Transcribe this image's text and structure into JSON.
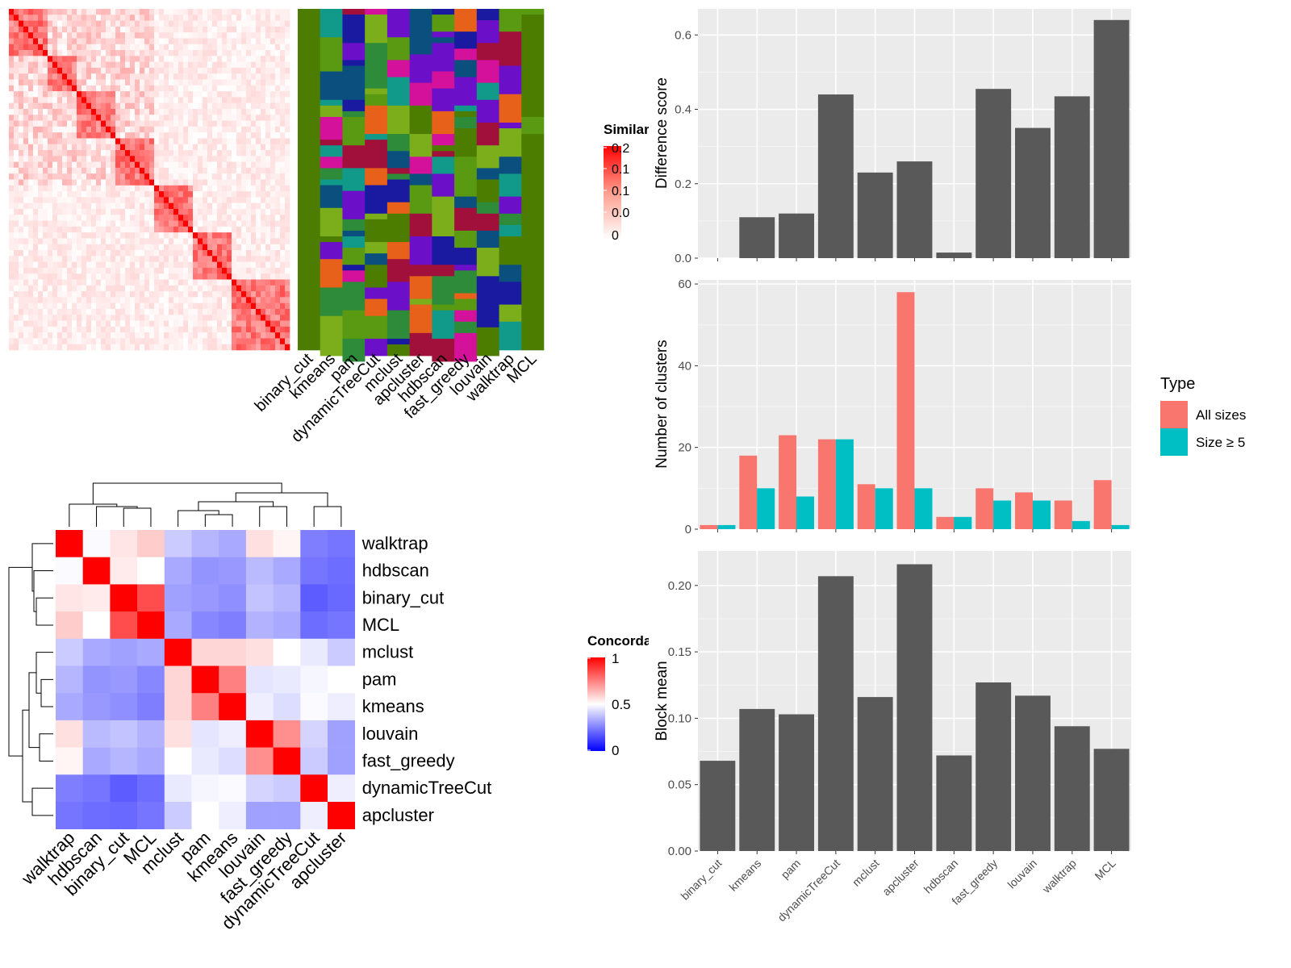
{
  "methods": [
    "binary_cut",
    "kmeans",
    "pam",
    "dynamicTreeCut",
    "mclust",
    "apcluster",
    "hdbscan",
    "fast_greedy",
    "louvain",
    "walktrap",
    "MCL"
  ],
  "similarity_heatmap": {
    "legend_title": "Similarity",
    "legend_ticks": [
      "0.2",
      "0.1",
      "0.1",
      "0.0",
      "0"
    ],
    "colors": {
      "low": "#ffffff",
      "high": "#ff0000"
    }
  },
  "partition_heatmap": {
    "columns": [
      "binary_cut",
      "kmeans",
      "pam",
      "dynamicTreeCut",
      "mclust",
      "apcluster",
      "hdbscan",
      "fast_greedy",
      "louvain",
      "walktrap",
      "MCL"
    ],
    "palette": [
      "#4d7d00",
      "#7cae1c",
      "#0b4f7f",
      "#e8611a",
      "#1a1aa0",
      "#a0103a",
      "#2e8b3a",
      "#d4119a",
      "#119a8a",
      "#6b10c8",
      "#5a9a12"
    ]
  },
  "concordance_heatmap": {
    "legend_title": "Concordance",
    "legend_ticks": [
      "1",
      "0.5",
      "0"
    ],
    "colors": {
      "low": "#0000ff",
      "mid": "#ffffff",
      "high": "#ff0000"
    },
    "order": [
      "walktrap",
      "hdbscan",
      "binary_cut",
      "MCL",
      "mclust",
      "pam",
      "kmeans",
      "louvain",
      "fast_greedy",
      "dynamicTreeCut",
      "apcluster"
    ],
    "matrix": [
      [
        1.0,
        0.49,
        0.55,
        0.6,
        0.38,
        0.33,
        0.3,
        0.56,
        0.52,
        0.2,
        0.18
      ],
      [
        0.49,
        1.0,
        0.54,
        0.5,
        0.3,
        0.25,
        0.26,
        0.34,
        0.3,
        0.18,
        0.16
      ],
      [
        0.55,
        0.54,
        1.0,
        0.85,
        0.28,
        0.26,
        0.24,
        0.36,
        0.33,
        0.12,
        0.15
      ],
      [
        0.6,
        0.5,
        0.85,
        1.0,
        0.3,
        0.22,
        0.2,
        0.32,
        0.3,
        0.16,
        0.18
      ],
      [
        0.38,
        0.3,
        0.28,
        0.3,
        1.0,
        0.58,
        0.58,
        0.56,
        0.5,
        0.45,
        0.38
      ],
      [
        0.33,
        0.25,
        0.26,
        0.22,
        0.58,
        1.0,
        0.75,
        0.44,
        0.45,
        0.48,
        0.5
      ],
      [
        0.3,
        0.26,
        0.24,
        0.2,
        0.58,
        0.75,
        1.0,
        0.46,
        0.42,
        0.49,
        0.46
      ],
      [
        0.56,
        0.34,
        0.36,
        0.32,
        0.56,
        0.44,
        0.46,
        1.0,
        0.72,
        0.4,
        0.28
      ],
      [
        0.52,
        0.3,
        0.33,
        0.3,
        0.5,
        0.45,
        0.42,
        0.72,
        1.0,
        0.38,
        0.28
      ],
      [
        0.2,
        0.18,
        0.12,
        0.16,
        0.45,
        0.48,
        0.49,
        0.4,
        0.38,
        1.0,
        0.46
      ],
      [
        0.18,
        0.16,
        0.15,
        0.18,
        0.38,
        0.5,
        0.46,
        0.28,
        0.28,
        0.46,
        1.0
      ]
    ]
  },
  "chart_data": [
    {
      "type": "bar",
      "categories": [
        "binary_cut",
        "kmeans",
        "pam",
        "dynamicTreeCut",
        "mclust",
        "apcluster",
        "hdbscan",
        "fast_greedy",
        "louvain",
        "walktrap",
        "MCL"
      ],
      "values": [
        0.0,
        0.11,
        0.12,
        0.44,
        0.23,
        0.26,
        0.015,
        0.455,
        0.35,
        0.435,
        0.64
      ],
      "ylabel": "Difference score",
      "ylim": [
        0,
        0.67
      ],
      "yticks": [
        0.0,
        0.2,
        0.4,
        0.6
      ],
      "ytick_labels": [
        "0.0",
        "0.2",
        "0.4",
        "0.6"
      ],
      "color": "#595959"
    },
    {
      "type": "bar",
      "categories": [
        "binary_cut",
        "kmeans",
        "pam",
        "dynamicTreeCut",
        "mclust",
        "apcluster",
        "hdbscan",
        "fast_greedy",
        "louvain",
        "walktrap",
        "MCL"
      ],
      "series": [
        {
          "name": "All sizes",
          "color": "#f8766d",
          "values": [
            1,
            18,
            23,
            22,
            11,
            58,
            3,
            10,
            9,
            7,
            12
          ]
        },
        {
          "name": "Size ≥ 5",
          "color": "#00bfc4",
          "values": [
            1,
            10,
            8,
            22,
            10,
            10,
            3,
            7,
            7,
            2,
            1
          ]
        }
      ],
      "ylabel": "Number of clusters",
      "ylim": [
        0,
        61
      ],
      "yticks": [
        0,
        20,
        40,
        60
      ],
      "ytick_labels": [
        "0",
        "20",
        "40",
        "60"
      ],
      "legend_title": "Type",
      "legend_position": "right"
    },
    {
      "type": "bar",
      "categories": [
        "binary_cut",
        "kmeans",
        "pam",
        "dynamicTreeCut",
        "mclust",
        "apcluster",
        "hdbscan",
        "fast_greedy",
        "louvain",
        "walktrap",
        "MCL"
      ],
      "values": [
        0.068,
        0.107,
        0.103,
        0.207,
        0.116,
        0.216,
        0.072,
        0.127,
        0.117,
        0.094,
        0.077
      ],
      "ylabel": "Block mean",
      "ylim": [
        0,
        0.226
      ],
      "yticks": [
        0.0,
        0.05,
        0.1,
        0.15,
        0.2
      ],
      "ytick_labels": [
        "0.00",
        "0.05",
        "0.10",
        "0.15",
        "0.20"
      ],
      "color": "#595959"
    }
  ]
}
